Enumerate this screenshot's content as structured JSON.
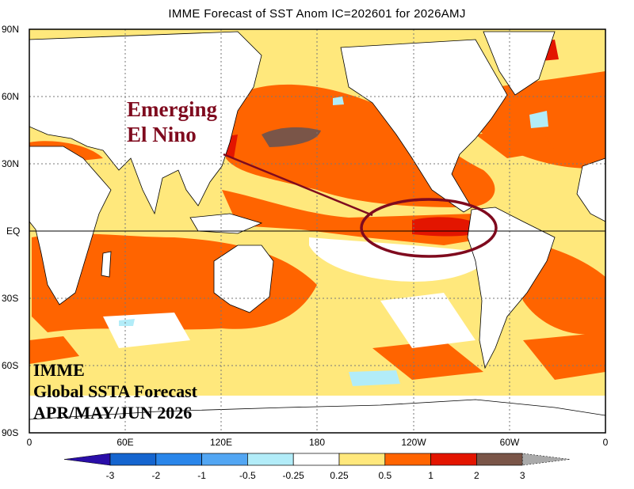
{
  "title": "IMME Forecast of SST Anom IC=202601 for 2026AMJ",
  "map": {
    "projection": "equirectangular, 0-360 longitude",
    "y_ticks": [
      "90N",
      "60N",
      "30N",
      "EQ",
      "30S",
      "60S",
      "90S"
    ],
    "x_ticks": [
      "0",
      "60E",
      "120E",
      "180",
      "120W",
      "60W",
      "0"
    ],
    "gridlines": "dotted every 30 degrees",
    "land_color": "#ffffff"
  },
  "annotation": {
    "line1": "Emerging",
    "line2": "El Nino",
    "color": "#7f0a1e",
    "target": "equatorial eastern Pacific (ellipse)"
  },
  "corner_text": {
    "line1": "IMME",
    "line2": "Global SSTA Forecast",
    "line3": "APR/MAY/JUN 2026"
  },
  "colorbar": {
    "labels": [
      "-3",
      "-2",
      "-1",
      "-0.5",
      "-0.25",
      "0.25",
      "0.5",
      "1",
      "2",
      "3"
    ],
    "colors": [
      "#2a0ea8",
      "#1565cf",
      "#2a86ea",
      "#52a6f3",
      "#b2ecf8",
      "#ffffff",
      "#ffe87c",
      "#ff6400",
      "#e31500",
      "#7a5548",
      "#aaaaaa"
    ]
  }
}
